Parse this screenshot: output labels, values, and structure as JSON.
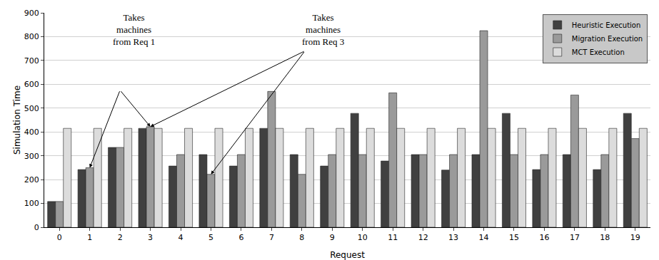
{
  "chart_data": {
    "type": "bar",
    "x_label": "Request",
    "y_label": "Simulation Time",
    "categories": [
      "0",
      "1",
      "2",
      "3",
      "4",
      "5",
      "6",
      "7",
      "8",
      "9",
      "10",
      "11",
      "12",
      "13",
      "14",
      "15",
      "16",
      "17",
      "18",
      "19"
    ],
    "series": [
      {
        "name": "Heuristic Execution",
        "color": "#404040",
        "values": [
          108,
          242,
          335,
          415,
          257,
          305,
          257,
          415,
          305,
          257,
          478,
          278,
          305,
          240,
          305,
          478,
          242,
          305,
          242,
          478
        ]
      },
      {
        "name": "Migration Execution",
        "color": "#9a9a9a",
        "values": [
          108,
          250,
          335,
          422,
          305,
          222,
          305,
          570,
          222,
          305,
          305,
          564,
          305,
          305,
          825,
          305,
          305,
          555,
          305,
          372
        ]
      },
      {
        "name": "MCT Execution",
        "color": "#dcdcdc",
        "values": [
          415,
          415,
          415,
          415,
          415,
          415,
          415,
          415,
          415,
          415,
          415,
          415,
          415,
          415,
          415,
          415,
          415,
          415,
          415,
          415
        ]
      }
    ],
    "ylim": [
      0,
      900
    ],
    "yticks": [
      0,
      100,
      200,
      300,
      400,
      500,
      600,
      700,
      800,
      900
    ],
    "grid": true,
    "legend": "top-right",
    "annotations": [
      {
        "text": [
          "Takes",
          "machines",
          "from Req 1"
        ],
        "targets": [
          "1",
          "3"
        ]
      },
      {
        "text": [
          "Takes",
          "machines",
          "from Req 3"
        ],
        "targets": [
          "3",
          "5"
        ]
      }
    ]
  }
}
